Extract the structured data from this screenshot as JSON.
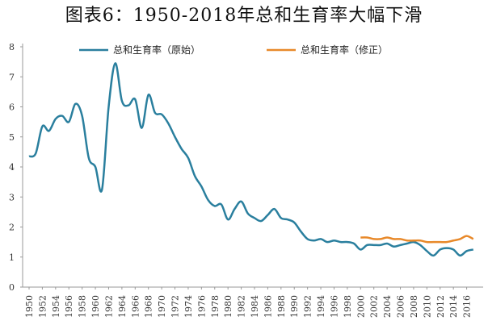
{
  "title": "图表6：1950-2018年总和生育率大幅下滑",
  "colors": {
    "original": "#2a7f9e",
    "revised": "#e8892a",
    "axis": "#999999"
  },
  "chart_data": {
    "type": "line",
    "title": "图表6：1950-2018年总和生育率大幅下滑",
    "xlabel": "",
    "ylabel": "",
    "xlim": [
      1950,
      2018
    ],
    "ylim": [
      0,
      8
    ],
    "yticks": [
      0,
      1,
      2,
      3,
      4,
      5,
      6,
      7,
      8
    ],
    "xticks": [
      1950,
      1952,
      1954,
      1956,
      1958,
      1960,
      1962,
      1964,
      1966,
      1968,
      1970,
      1972,
      1974,
      1976,
      1978,
      1980,
      1982,
      1984,
      1986,
      1988,
      1990,
      1992,
      1994,
      1996,
      1998,
      2000,
      2002,
      2004,
      2006,
      2008,
      2010,
      2012,
      2014,
      2016
    ],
    "legend_position": "top",
    "series": [
      {
        "name": "总和生育率（原始）",
        "x": [
          1950,
          1951,
          1952,
          1953,
          1954,
          1955,
          1956,
          1957,
          1958,
          1959,
          1960,
          1961,
          1962,
          1963,
          1964,
          1965,
          1966,
          1967,
          1968,
          1969,
          1970,
          1971,
          1972,
          1973,
          1974,
          1975,
          1976,
          1977,
          1978,
          1979,
          1980,
          1981,
          1982,
          1983,
          1984,
          1985,
          1986,
          1987,
          1988,
          1989,
          1990,
          1991,
          1992,
          1993,
          1994,
          1995,
          1996,
          1997,
          1998,
          1999,
          2000,
          2001,
          2002,
          2003,
          2004,
          2005,
          2006,
          2007,
          2008,
          2009,
          2010,
          2011,
          2012,
          2013,
          2014,
          2015,
          2016,
          2017
        ],
        "values": [
          4.35,
          4.45,
          5.35,
          5.2,
          5.6,
          5.7,
          5.5,
          6.1,
          5.7,
          4.3,
          4.0,
          3.25,
          6.0,
          7.45,
          6.2,
          6.05,
          6.25,
          5.3,
          6.4,
          5.8,
          5.75,
          5.45,
          5.0,
          4.6,
          4.3,
          3.7,
          3.35,
          2.9,
          2.7,
          2.75,
          2.25,
          2.6,
          2.85,
          2.45,
          2.3,
          2.2,
          2.4,
          2.6,
          2.3,
          2.25,
          2.15,
          1.85,
          1.6,
          1.55,
          1.6,
          1.5,
          1.55,
          1.5,
          1.5,
          1.45,
          1.25,
          1.4,
          1.4,
          1.4,
          1.45,
          1.35,
          1.4,
          1.45,
          1.5,
          1.4,
          1.2,
          1.05,
          1.25,
          1.3,
          1.25,
          1.05,
          1.2,
          1.25
        ]
      },
      {
        "name": "总和生育率（修正）",
        "x": [
          2000,
          2001,
          2002,
          2003,
          2004,
          2005,
          2006,
          2007,
          2008,
          2009,
          2010,
          2011,
          2012,
          2013,
          2014,
          2015,
          2016,
          2017
        ],
        "values": [
          1.65,
          1.65,
          1.6,
          1.6,
          1.65,
          1.6,
          1.6,
          1.55,
          1.55,
          1.55,
          1.5,
          1.5,
          1.5,
          1.5,
          1.55,
          1.6,
          1.7,
          1.6
        ]
      }
    ]
  }
}
